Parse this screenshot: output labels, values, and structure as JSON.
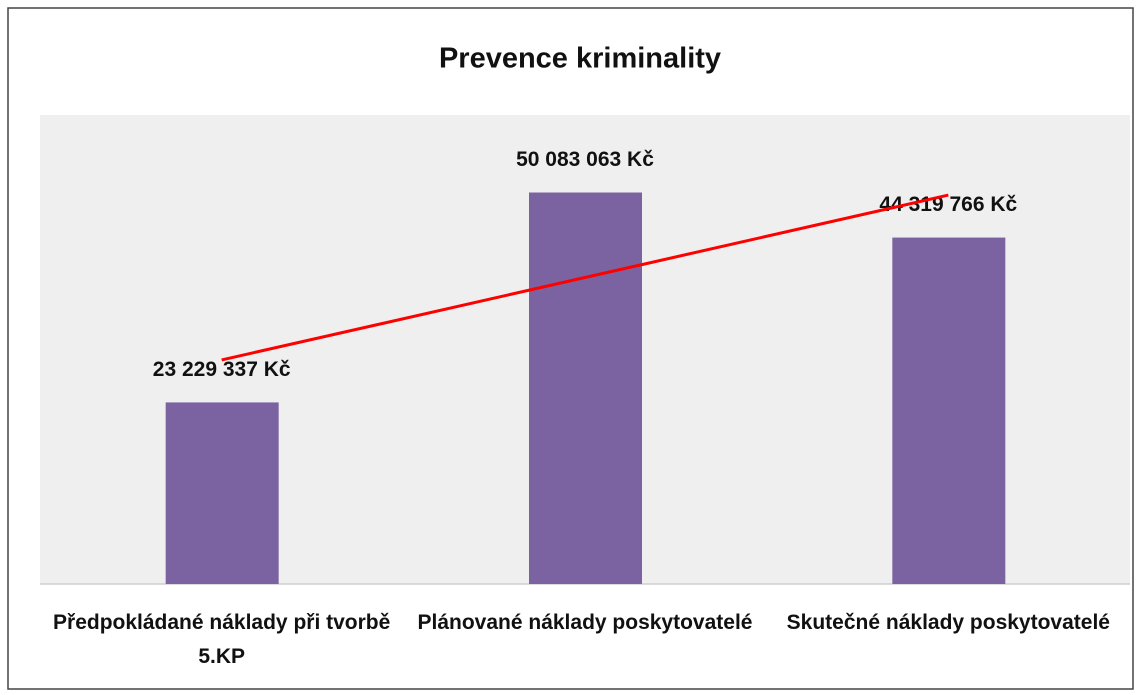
{
  "chart_data": {
    "type": "bar",
    "title": "Prevence kriminality",
    "categories": [
      "Předpokládané náklady při tvorbě 5.KP",
      "Plánované náklady poskytovatelé",
      "Skutečné náklady poskytovatelé"
    ],
    "values": [
      23229337,
      50083063,
      44319766
    ],
    "value_labels": [
      "23 229 337 Kč",
      "50 083 063 Kč",
      "44 319 766 Kč"
    ],
    "color": "#7b62a0",
    "ylim": [
      0,
      60000000
    ],
    "trendline": {
      "type": "linear",
      "color": "#ff0000"
    }
  }
}
